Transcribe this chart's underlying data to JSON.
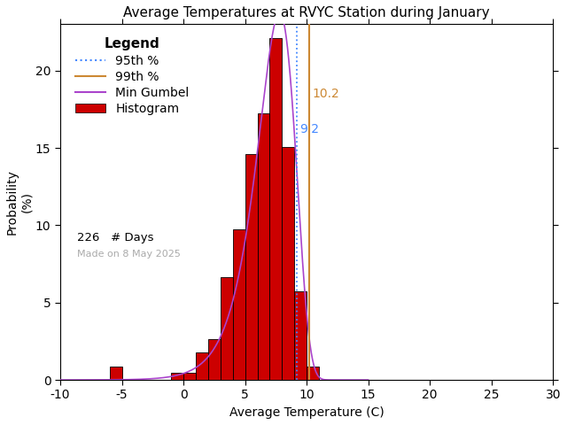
{
  "title": "Average Temperatures at RVYC Station during January",
  "xlabel": "Average Temperature (C)",
  "ylabel": "Probability\n(%)",
  "xlim": [
    -10,
    30
  ],
  "ylim": [
    0,
    23
  ],
  "bar_color": "#cc0000",
  "bar_edge_color": "#000000",
  "gumbel_color": "#aa44cc",
  "p95_color": "#4488ff",
  "p99_color": "#cc8833",
  "p95_value": 9.2,
  "p99_value": 10.2,
  "p95_label": "9.2",
  "p99_label": "10.2",
  "n_days": 226,
  "made_on": "Made on 8 May 2025",
  "bin_left_edges": [
    -7,
    -6,
    -5,
    -4,
    -3,
    -2,
    -1,
    0,
    1,
    2,
    3,
    4,
    5,
    6,
    7,
    8,
    9,
    10
  ],
  "bin_heights": [
    0.0,
    0.88,
    0.0,
    0.0,
    0.0,
    0.0,
    0.44,
    0.44,
    1.77,
    2.65,
    6.64,
    9.73,
    14.6,
    17.26,
    22.12,
    15.04,
    5.75,
    0.88
  ],
  "gumbel_mu": 7.8,
  "gumbel_beta": 1.55,
  "background_color": "#ffffff",
  "title_fontsize": 11,
  "axis_fontsize": 10,
  "tick_fontsize": 10,
  "legend_fontsize": 10
}
